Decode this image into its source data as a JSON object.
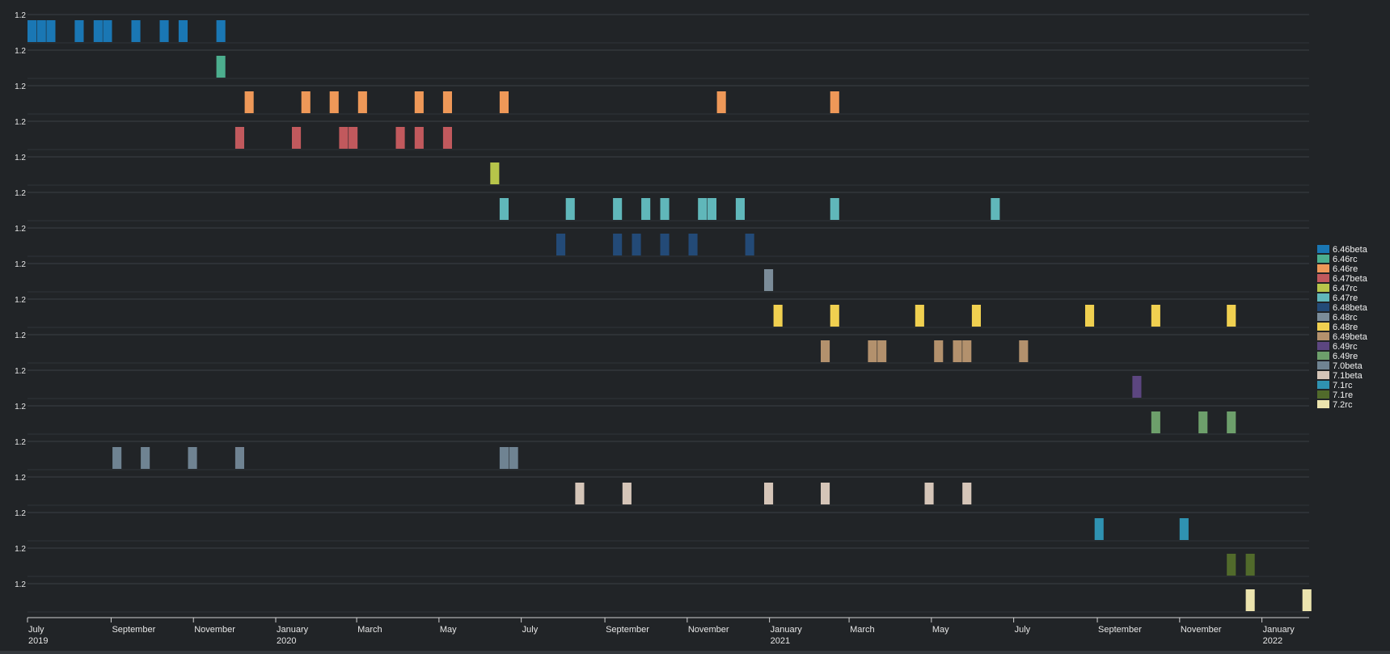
{
  "chart_data": {
    "type": "bar",
    "x_axis": {
      "type": "time",
      "range": [
        "2019-07-01",
        "2022-02-05"
      ],
      "ticks": [
        {
          "date": "2019-07-01",
          "label": "July",
          "year": "2019"
        },
        {
          "date": "2019-09-01",
          "label": "September",
          "year": ""
        },
        {
          "date": "2019-11-01",
          "label": "November",
          "year": ""
        },
        {
          "date": "2020-01-01",
          "label": "January",
          "year": "2020"
        },
        {
          "date": "2020-03-01",
          "label": "March",
          "year": ""
        },
        {
          "date": "2020-05-01",
          "label": "May",
          "year": ""
        },
        {
          "date": "2020-07-01",
          "label": "July",
          "year": ""
        },
        {
          "date": "2020-09-01",
          "label": "September",
          "year": ""
        },
        {
          "date": "2020-11-01",
          "label": "November",
          "year": ""
        },
        {
          "date": "2021-01-01",
          "label": "January",
          "year": "2021"
        },
        {
          "date": "2021-03-01",
          "label": "March",
          "year": ""
        },
        {
          "date": "2021-05-01",
          "label": "May",
          "year": ""
        },
        {
          "date": "2021-07-01",
          "label": "July",
          "year": ""
        },
        {
          "date": "2021-09-01",
          "label": "September",
          "year": ""
        },
        {
          "date": "2021-11-01",
          "label": "November",
          "year": ""
        },
        {
          "date": "2022-01-01",
          "label": "January",
          "year": "2022"
        }
      ]
    },
    "y_tick_label": "1.2",
    "bar_value": 1,
    "bar_width_days": 7,
    "legend_position": "right",
    "grid": true,
    "series": [
      {
        "name": "6.46beta",
        "color": "#1a77b4",
        "dates": [
          "2019-07-01",
          "2019-07-08",
          "2019-07-15",
          "2019-08-05",
          "2019-08-19",
          "2019-08-26",
          "2019-09-16",
          "2019-10-07",
          "2019-10-21",
          "2019-11-18"
        ]
      },
      {
        "name": "6.46rc",
        "color": "#4cae8e",
        "dates": [
          "2019-11-18"
        ]
      },
      {
        "name": "6.46re",
        "color": "#ee9858",
        "dates": [
          "2019-12-09",
          "2020-01-20",
          "2020-02-10",
          "2020-03-02",
          "2020-04-13",
          "2020-05-04",
          "2020-06-15",
          "2020-11-23",
          "2021-02-15"
        ]
      },
      {
        "name": "6.47beta",
        "color": "#c1595d",
        "dates": [
          "2019-12-02",
          "2020-01-13",
          "2020-02-17",
          "2020-02-24",
          "2020-03-30",
          "2020-04-13",
          "2020-05-04"
        ]
      },
      {
        "name": "6.47rc",
        "color": "#b7c54a",
        "dates": [
          "2020-06-08"
        ]
      },
      {
        "name": "6.47re",
        "color": "#60b7ba",
        "dates": [
          "2020-06-15",
          "2020-08-03",
          "2020-09-07",
          "2020-09-28",
          "2020-10-12",
          "2020-11-09",
          "2020-11-16",
          "2020-12-07",
          "2021-02-15",
          "2021-06-14"
        ]
      },
      {
        "name": "6.48beta",
        "color": "#234a77",
        "dates": [
          "2020-07-27",
          "2020-09-07",
          "2020-09-21",
          "2020-10-12",
          "2020-11-02",
          "2020-12-14"
        ]
      },
      {
        "name": "6.48rc",
        "color": "#7b8c99",
        "dates": [
          "2020-12-28"
        ]
      },
      {
        "name": "6.48re",
        "color": "#f0d050",
        "dates": [
          "2021-01-04",
          "2021-02-15",
          "2021-04-19",
          "2021-05-31",
          "2021-08-23",
          "2021-10-11",
          "2021-12-06"
        ]
      },
      {
        "name": "6.49beta",
        "color": "#b3916d",
        "dates": [
          "2021-02-08",
          "2021-03-15",
          "2021-03-22",
          "2021-05-03",
          "2021-05-17",
          "2021-05-24",
          "2021-07-05"
        ]
      },
      {
        "name": "6.49rc",
        "color": "#5c4680",
        "dates": [
          "2021-09-27"
        ]
      },
      {
        "name": "6.49re",
        "color": "#6d9f6b",
        "dates": [
          "2021-10-11",
          "2021-11-15",
          "2021-12-06"
        ]
      },
      {
        "name": "7.0beta",
        "color": "#6f8392",
        "dates": [
          "2019-09-02",
          "2019-09-23",
          "2019-10-28",
          "2019-12-02",
          "2020-06-15",
          "2020-06-22"
        ]
      },
      {
        "name": "7.1beta",
        "color": "#d5c5b8",
        "dates": [
          "2020-08-10",
          "2020-09-14",
          "2020-12-28",
          "2021-02-08",
          "2021-04-26",
          "2021-05-24"
        ]
      },
      {
        "name": "7.1rc",
        "color": "#2f92b1",
        "dates": [
          "2021-08-30",
          "2021-11-01"
        ]
      },
      {
        "name": "7.1re",
        "color": "#516a2b",
        "dates": [
          "2021-12-06",
          "2021-12-20"
        ]
      },
      {
        "name": "7.2rc",
        "color": "#ece4ae",
        "dates": [
          "2021-12-20",
          "2022-01-31"
        ]
      }
    ]
  }
}
